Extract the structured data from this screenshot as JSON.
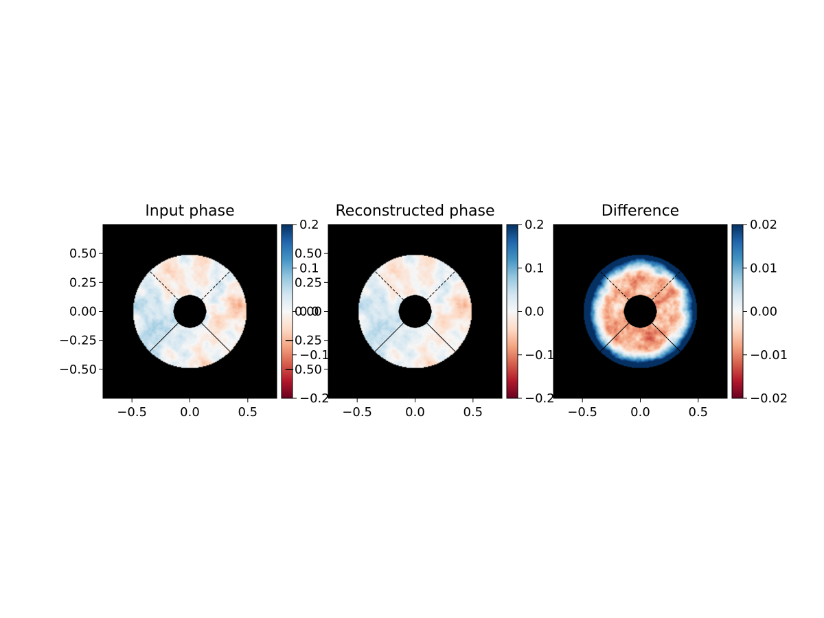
{
  "figure": {
    "background": "#ffffff"
  },
  "chart_data": [
    {
      "type": "heatmap",
      "title": "Input phase",
      "xlabel": "",
      "ylabel": "",
      "xlim": [
        -0.75,
        0.75
      ],
      "ylim": [
        -0.75,
        0.75
      ],
      "xticks": [
        -0.5,
        0.0,
        0.5
      ],
      "xtick_labels": [
        "−0.5",
        "0.0",
        "0.5"
      ],
      "yticks": [
        0.5,
        0.25,
        0.0,
        -0.25,
        -0.5
      ],
      "ytick_labels": [
        "0.50",
        "0.25",
        "0.00",
        "−0.25",
        "−0.50"
      ],
      "pupil": {
        "outer_radius": 0.49,
        "inner_radius": 0.14,
        "spider_angles_deg": [
          45,
          135,
          225,
          315
        ],
        "outside_color": "#000000"
      },
      "field": {
        "description": "turbulent phase screen",
        "vmin": -0.2,
        "vmax": 0.2,
        "low_freq_amp": 0.05,
        "edge_boost": 0,
        "center_bias": 0
      },
      "colorbar": {
        "cmap": "RdBu",
        "ticks": [
          0.2,
          0.1,
          0.0,
          -0.1,
          -0.2
        ],
        "tick_labels": [
          "0.2",
          "0.1",
          "0.0",
          "−0.1",
          "−0.2"
        ]
      }
    },
    {
      "type": "heatmap",
      "title": "Reconstructed phase",
      "xlabel": "",
      "ylabel": "",
      "xlim": [
        -0.75,
        0.75
      ],
      "ylim": [
        -0.75,
        0.75
      ],
      "xticks": [
        -0.5,
        0.0,
        0.5
      ],
      "xtick_labels": [
        "−0.5",
        "0.0",
        "0.5"
      ],
      "yticks": [
        0.5,
        0.25,
        0.0,
        -0.25,
        -0.5
      ],
      "ytick_labels": [
        "0.50",
        "0.25",
        "0.00",
        "−0.25",
        "−0.50"
      ],
      "pupil": {
        "outer_radius": 0.49,
        "inner_radius": 0.14,
        "spider_angles_deg": [
          45,
          135,
          225,
          315
        ],
        "outside_color": "#000000"
      },
      "field": {
        "description": "reconstructed phase screen",
        "vmin": -0.2,
        "vmax": 0.2,
        "low_freq_amp": 0.045,
        "edge_boost": 0,
        "center_bias": 0
      },
      "colorbar": {
        "cmap": "RdBu",
        "ticks": [
          0.2,
          0.1,
          0.0,
          -0.1,
          -0.2
        ],
        "tick_labels": [
          "0.2",
          "0.1",
          "0.0",
          "−0.1",
          "−0.2"
        ]
      }
    },
    {
      "type": "heatmap",
      "title": "Difference",
      "xlabel": "",
      "ylabel": "",
      "xlim": [
        -0.75,
        0.75
      ],
      "ylim": [
        -0.75,
        0.75
      ],
      "xticks": [
        -0.5,
        0.0,
        0.5
      ],
      "xtick_labels": [
        "−0.5",
        "0.0",
        "0.5"
      ],
      "yticks": [],
      "ytick_labels": [],
      "pupil": {
        "outer_radius": 0.49,
        "inner_radius": 0.14,
        "spider_angles_deg": [
          45,
          135,
          225,
          315
        ],
        "outside_color": "#000000"
      },
      "field": {
        "description": "residual: negative interior, positive rim",
        "vmin": -0.02,
        "vmax": 0.02,
        "low_freq_amp": 0.004,
        "edge_boost": 0.034,
        "center_bias": -0.008
      },
      "colorbar": {
        "cmap": "RdBu",
        "ticks": [
          0.02,
          0.01,
          0.0,
          -0.01,
          -0.02
        ],
        "tick_labels": [
          "0.02",
          "0.01",
          "0.00",
          "−0.01",
          "−0.02"
        ]
      }
    }
  ]
}
